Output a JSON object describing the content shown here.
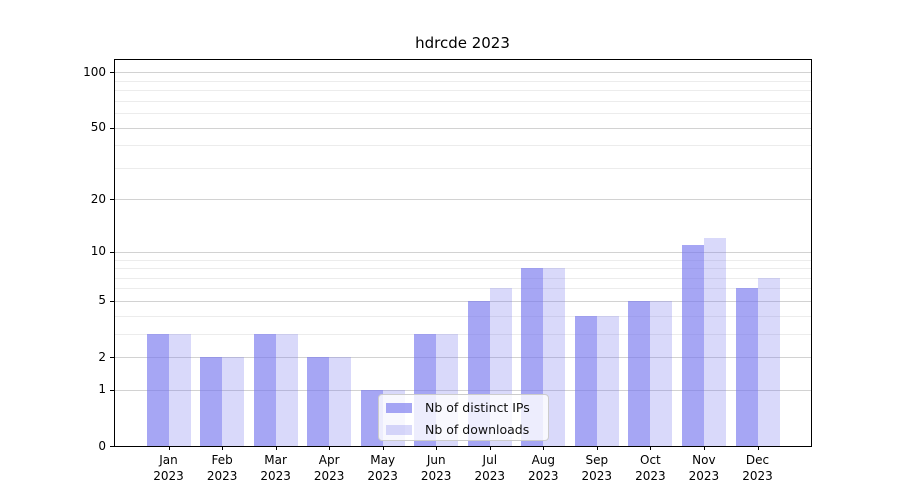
{
  "chart_data": {
    "type": "bar",
    "title": "hdrcde 2023",
    "categories": [
      "Jan",
      "Feb",
      "Mar",
      "Apr",
      "May",
      "Jun",
      "Jul",
      "Aug",
      "Sep",
      "Oct",
      "Nov",
      "Dec"
    ],
    "category_year": "2023",
    "series": [
      {
        "name": "Nb of distinct IPs",
        "alpha": 0.65,
        "values": [
          3,
          2,
          3,
          2,
          1,
          3,
          5,
          8,
          4,
          5,
          11,
          6
        ]
      },
      {
        "name": "Nb of downloads",
        "alpha": 0.28,
        "values": [
          3,
          2,
          3,
          2,
          1,
          3,
          6,
          8,
          4,
          5,
          12,
          7
        ]
      }
    ],
    "bar_color": "#7777ee",
    "y_axis": {
      "scale": "log1p",
      "tick_values": [
        0,
        1,
        2,
        5,
        10,
        20,
        50,
        100
      ],
      "minor_gridline_values": [
        3,
        4,
        6,
        7,
        8,
        9,
        30,
        40,
        60,
        70,
        80,
        90
      ],
      "top_value": 115
    },
    "x_axis": {
      "label_format": "month over year"
    },
    "grid": true,
    "legend_position": "lower center"
  }
}
